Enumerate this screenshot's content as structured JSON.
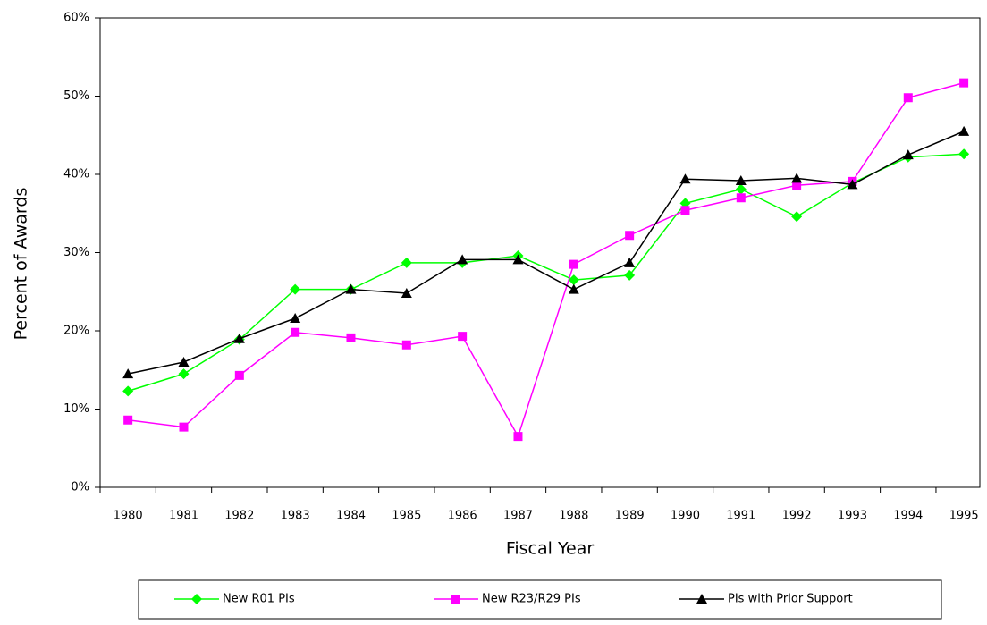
{
  "chart_data": {
    "type": "line",
    "x_label": "Fiscal Year",
    "y_label": "Percent of Awards",
    "categories": [
      "1980",
      "1981",
      "1982",
      "1983",
      "1984",
      "1985",
      "1986",
      "1987",
      "1988",
      "1989",
      "1990",
      "1991",
      "1992",
      "1993",
      "1994",
      "1995"
    ],
    "ylim": [
      0,
      60
    ],
    "yticks": [
      {
        "value": 0,
        "label": "0%"
      },
      {
        "value": 10,
        "label": "10%"
      },
      {
        "value": 20,
        "label": "20%"
      },
      {
        "value": 30,
        "label": "30%"
      },
      {
        "value": 40,
        "label": "40%"
      },
      {
        "value": 50,
        "label": "50%"
      },
      {
        "value": 60,
        "label": "60%"
      }
    ],
    "legend": "bottom",
    "series": [
      {
        "name": "New R01 PIs",
        "color": "#00ff00",
        "marker": "diamond",
        "values": [
          12.3,
          14.5,
          18.9,
          25.3,
          25.3,
          28.7,
          28.7,
          29.6,
          26.5,
          27.1,
          36.3,
          38.1,
          34.6,
          38.9,
          42.2,
          42.6
        ]
      },
      {
        "name": "New R23/R29 PIs",
        "color": "#ff00ff",
        "marker": "square",
        "values": [
          8.6,
          7.7,
          14.3,
          19.8,
          19.1,
          18.2,
          19.3,
          6.5,
          28.5,
          32.2,
          35.4,
          37.0,
          38.6,
          39.1,
          49.8,
          51.7
        ]
      },
      {
        "name": "PIs with Prior Support",
        "color": "#000000",
        "marker": "triangle",
        "values": [
          14.5,
          16.0,
          19.0,
          21.6,
          25.3,
          24.8,
          29.1,
          29.1,
          25.3,
          28.7,
          39.4,
          39.2,
          39.5,
          38.7,
          42.5,
          45.5
        ]
      }
    ]
  }
}
